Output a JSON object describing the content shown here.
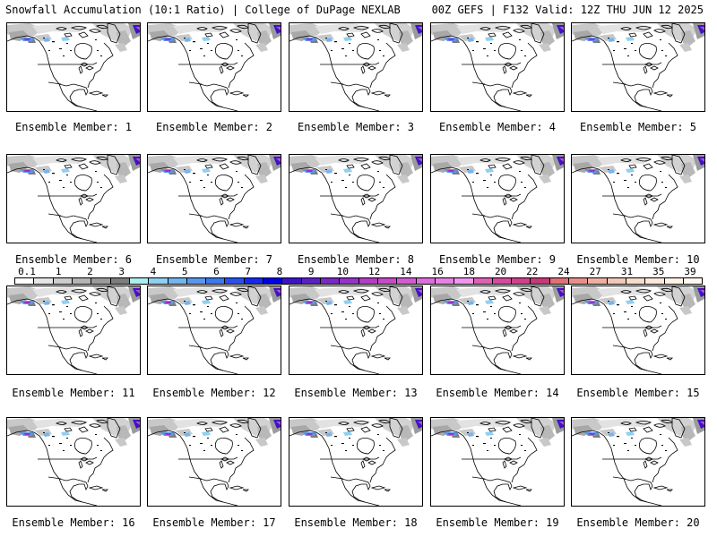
{
  "header": {
    "left": "Snowfall Accumulation (10:1 Ratio) | College of DuPage NEXLAB",
    "right": "00Z GEFS | F132 Valid: 12Z THU JUN 12 2025"
  },
  "panels": [
    {
      "label": "Ensemble Member: 1"
    },
    {
      "label": "Ensemble Member: 2"
    },
    {
      "label": "Ensemble Member: 3"
    },
    {
      "label": "Ensemble Member: 4"
    },
    {
      "label": "Ensemble Member: 5"
    },
    {
      "label": "Ensemble Member: 6"
    },
    {
      "label": "Ensemble Member: 7"
    },
    {
      "label": "Ensemble Member: 8"
    },
    {
      "label": "Ensemble Member: 9"
    },
    {
      "label": "Ensemble Member: 10"
    },
    {
      "label": "Ensemble Member: 11"
    },
    {
      "label": "Ensemble Member: 12"
    },
    {
      "label": "Ensemble Member: 13"
    },
    {
      "label": "Ensemble Member: 14"
    },
    {
      "label": "Ensemble Member: 15"
    },
    {
      "label": "Ensemble Member: 16"
    },
    {
      "label": "Ensemble Member: 17"
    },
    {
      "label": "Ensemble Member: 18"
    },
    {
      "label": "Ensemble Member: 19"
    },
    {
      "label": "Ensemble Member: 20"
    }
  ],
  "colorbar": {
    "labels": [
      "0.1",
      "1",
      "2",
      "3",
      "4",
      "5",
      "6",
      "7",
      "8",
      "9",
      "10",
      "12",
      "14",
      "16",
      "18",
      "20",
      "22",
      "24",
      "27",
      "31",
      "35",
      "39"
    ],
    "colors": [
      "#ffffff",
      "#e6e6e6",
      "#cdcdcd",
      "#b4b4b4",
      "#9b9b9b",
      "#7d7d7d",
      "#aaeeee",
      "#8fd0f2",
      "#74b4f0",
      "#5a96ee",
      "#3c78ee",
      "#2850f0",
      "#1428f0",
      "#0000e8",
      "#3c14c8",
      "#5a1ec8",
      "#7828c8",
      "#9632c8",
      "#b43cc8",
      "#c84ac8",
      "#d25ad2",
      "#dc6edc",
      "#e682e6",
      "#f096f0",
      "#e060b4",
      "#d84aa0",
      "#d0408c",
      "#c83878",
      "#e07078",
      "#e89088",
      "#f0b0a0",
      "#f4c8b8",
      "#f8dcc8",
      "#fce8d8",
      "#fff2e6",
      "#fff8f0"
    ]
  }
}
